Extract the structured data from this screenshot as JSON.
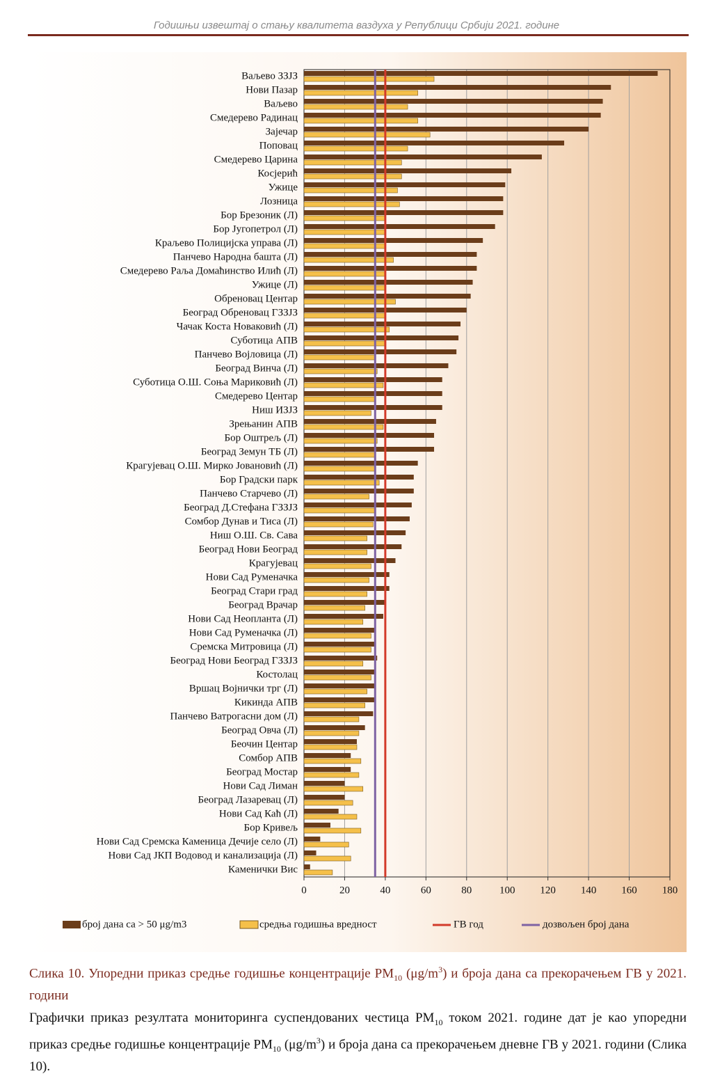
{
  "header": {
    "title": "Годишњи извештај о стању квалитета ваздуха у Републици Србији 2021. године"
  },
  "chart_data": {
    "type": "bar",
    "orientation": "horizontal",
    "categories": [
      "Ваљево ЗЗЈЗ",
      "Нови Пазар",
      "Ваљево",
      "Смедерево Радинац",
      "Зајечар",
      "Поповац",
      "Смедерево Царина",
      "Косјерић",
      "Ужице",
      "Лозница",
      "Бор Брезоник (Л)",
      "Бор Југопетрол  (Л)",
      "Краљево Полицијска управа (Л)",
      "Панчево Народна башта (Л)",
      "Смедерево Раља Домаћинство Илић (Л)",
      "Ужице (Л)",
      "Обреновац Центар",
      "Београд  Обреновац ГЗЗЈЗ",
      "Чачак Коста Новаковић (Л)",
      "Суботица АПВ",
      "Панчево Војловица (Л)",
      "Београд Винча (Л)",
      "Суботица О.Ш. Соња Мариковић (Л)",
      "Смедерево Центар",
      "Ниш ИЗЈЗ",
      "Зрењанин АПВ",
      "Бор Оштрељ (Л)",
      "Београд Земун ТБ (Л)",
      "Крагујевац О.Ш. Мирко Јовановић (Л)",
      "Бор Градски парк",
      "Панчево Старчево (Л)",
      "Београд  Д.Стефана ГЗЗЈЗ",
      "Сомбор Дунав и Тиса (Л)",
      "Ниш О.Ш. Св. Сава",
      "Београд Нови Београд",
      "Крагујевац",
      "Нови Сад Руменачка",
      "Београд Стари град",
      "Београд Врачар",
      "Нови Сад Неопланта (Л)",
      "Нови Сад Руменачка (Л)",
      "Сремска Митровица (Л)",
      "Београд Нови Београд ГЗЗЈЗ",
      "Костолац",
      "Вршац Војнички трг (Л)",
      "Кикинда АПВ",
      "Панчево Ватрогасни дом (Л)",
      "Београд Овча (Л)",
      "Беочин Центар",
      "Сомбор АПВ",
      "Београд Мостар",
      "Нови Сад Лиман",
      "Београд Лазаревац (Л)",
      "Нови Сад Каћ (Л)",
      "Бор Кривељ",
      "Нови Сад Сремска Каменица Дечије село (Л)",
      "Нови Сад ЈКП Водовод и канализација  (Л)",
      "Каменички Вис"
    ],
    "series": [
      {
        "name": "број дана са  > 50 μg/m3",
        "color": "#6b3d1a",
        "values": [
          174,
          151,
          147,
          146,
          140,
          128,
          117,
          102,
          99,
          98,
          98,
          94,
          88,
          85,
          85,
          83,
          82,
          80,
          77,
          76,
          75,
          71,
          68,
          68,
          68,
          65,
          64,
          64,
          56,
          54,
          54,
          53,
          52,
          50,
          48,
          45,
          42,
          42,
          40,
          39,
          35,
          35,
          36,
          35,
          35,
          35,
          34,
          30,
          26,
          23,
          23,
          20,
          20,
          17,
          13,
          8,
          6,
          3
        ]
      },
      {
        "name": "средња годишња вредност",
        "color": "#f5c04a",
        "values": [
          64,
          56,
          51,
          56,
          62,
          51,
          48,
          48,
          46,
          47,
          40,
          40,
          40,
          44,
          40,
          40,
          45,
          40,
          42,
          40,
          35,
          36,
          39,
          35,
          33,
          39,
          36,
          35,
          35,
          37,
          32,
          35,
          34,
          31,
          31,
          33,
          32,
          31,
          30,
          29,
          33,
          33,
          29,
          33,
          31,
          30,
          27,
          27,
          26,
          28,
          27,
          29,
          24,
          26,
          28,
          22,
          23,
          14
        ]
      }
    ],
    "reference_lines": [
      {
        "name": "ГВ год",
        "color": "#d23a2a",
        "value": 40
      },
      {
        "name": "дозвољен број дана",
        "color": "#7e62a3",
        "value": 35
      }
    ],
    "xlim": [
      0,
      180
    ],
    "xticks": [
      0,
      20,
      40,
      60,
      80,
      100,
      120,
      140,
      160,
      180
    ],
    "grid": true
  },
  "caption": {
    "parts": [
      "Слика 10. Упоредни приказ средње годишње концентрације PM",
      "10",
      " (μg/m",
      "3",
      ") и броја дана са прекорачењем ГВ у 2021. години"
    ]
  },
  "paragraph": {
    "parts": [
      "Графички приказ резултата мониторинга суспендованих честица PM",
      "10",
      " током 2021. године дат је као упоредни приказ средње годишње концентрације PM",
      "10",
      " (μg/m",
      "3",
      ") и броја дана са прекорачењем дневне ГВ у 2021. години (Слика 10)."
    ]
  }
}
